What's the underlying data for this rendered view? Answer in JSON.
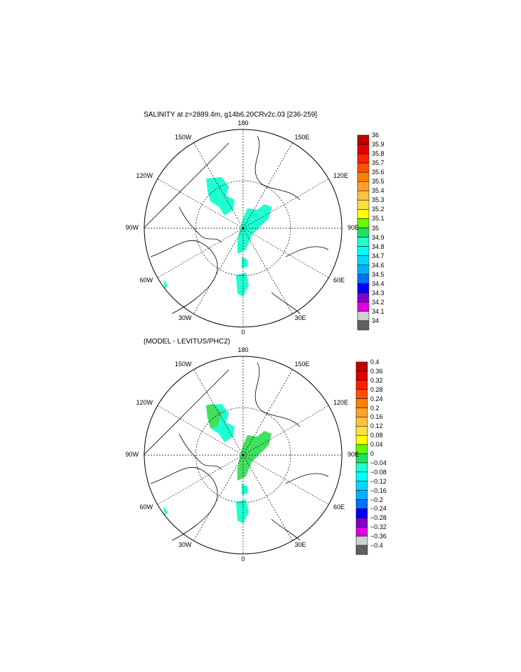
{
  "chart_data": [
    {
      "type": "heatmap",
      "projection": "north polar stereographic",
      "title": "SALINITY at z=2889.4m, g14b6.20CRv2c.03 [236-259]",
      "longitude_labels": [
        "180",
        "150E",
        "120E",
        "90E",
        "60E",
        "30E",
        "0",
        "30W",
        "60W",
        "90W",
        "120W",
        "150W"
      ],
      "colorbar": {
        "levels": [
          "36",
          "35.9",
          "35.8",
          "35.7",
          "35.6",
          "35.5",
          "35.4",
          "35.3",
          "35.2",
          "35.1",
          "35",
          "34.9",
          "34.8",
          "34.7",
          "34.6",
          "34.5",
          "34.4",
          "34.3",
          "34.2",
          "34.1",
          "34"
        ],
        "colors": [
          "#c00000",
          "#e00000",
          "#ff2000",
          "#ff5000",
          "#ff8000",
          "#ffa030",
          "#ffc040",
          "#ffe040",
          "#ffff00",
          "#60ff00",
          "#20e060",
          "#20ffd0",
          "#00ffff",
          "#00d8ff",
          "#00b0ff",
          "#0070ff",
          "#0000ff",
          "#8000d0",
          "#e000e0",
          "#d0d0d0",
          "#606060"
        ]
      },
      "fill_color_value_band": "34.9-35"
    },
    {
      "type": "heatmap",
      "projection": "north polar stereographic",
      "title": "(MODEL - LEVITUS/PHC2)",
      "longitude_labels": [
        "180",
        "150E",
        "120E",
        "90E",
        "60E",
        "30E",
        "0",
        "30W",
        "60W",
        "90W",
        "120W",
        "150W"
      ],
      "colorbar": {
        "levels": [
          "0.4",
          "0.36",
          "0.32",
          "0.28",
          "0.24",
          "0.2",
          "0.16",
          "0.12",
          "0.08",
          "0.04",
          "0",
          "−0.04",
          "−0.08",
          "−0.12",
          "−0.16",
          "−0.2",
          "−0.24",
          "−0.28",
          "−0.32",
          "−0.36",
          "−0.4"
        ],
        "colors": [
          "#c00000",
          "#e00000",
          "#ff2000",
          "#ff5000",
          "#ff8000",
          "#ffa030",
          "#ffc040",
          "#ffe040",
          "#ffff00",
          "#60ff00",
          "#20e060",
          "#20ffd0",
          "#00ffff",
          "#00d8ff",
          "#00b0ff",
          "#0070ff",
          "#0000ff",
          "#8000d0",
          "#e000e0",
          "#d0d0d0",
          "#606060"
        ]
      },
      "fill_color_value_bands": [
        "-0.04-0",
        "0-0.04"
      ]
    }
  ]
}
